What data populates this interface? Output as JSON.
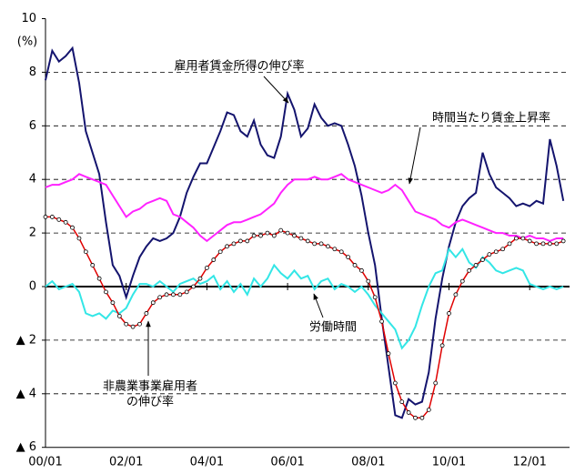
{
  "chart_data": {
    "type": "line",
    "y_unit_label": "(%)",
    "categories": [
      "00/01",
      null,
      null,
      null,
      null,
      null,
      null,
      null,
      null,
      null,
      null,
      null,
      "02/01",
      null,
      null,
      null,
      null,
      null,
      null,
      null,
      null,
      null,
      null,
      null,
      "04/01",
      null,
      null,
      null,
      null,
      null,
      null,
      null,
      null,
      null,
      null,
      null,
      "06/01",
      null,
      null,
      null,
      null,
      null,
      null,
      null,
      null,
      null,
      null,
      null,
      "08/01",
      null,
      null,
      null,
      null,
      null,
      null,
      null,
      null,
      null,
      null,
      null,
      "10/01",
      null,
      null,
      null,
      null,
      null,
      null,
      null,
      null,
      null,
      null,
      null,
      "12/01",
      null,
      null,
      null,
      null,
      null
    ],
    "ylim": [
      -6,
      10
    ],
    "yticks": [
      10,
      8,
      6,
      4,
      2,
      0,
      {
        "value": -2,
        "label": "▲ 2"
      },
      {
        "value": -4,
        "label": "▲ 4"
      },
      {
        "value": -6,
        "label": "▲ 6"
      }
    ],
    "grid": true,
    "series": [
      {
        "name": "雇用者賃金所得の伸び率",
        "color": "#14146e",
        "values": [
          7.7,
          8.8,
          8.4,
          8.6,
          8.9,
          7.6,
          5.8,
          5.0,
          4.2,
          2.4,
          0.8,
          0.4,
          -0.4,
          0.4,
          1.1,
          1.5,
          1.8,
          1.7,
          1.8,
          2.0,
          2.6,
          3.5,
          4.1,
          4.6,
          4.6,
          5.2,
          5.8,
          6.5,
          6.4,
          5.8,
          5.6,
          6.2,
          5.3,
          4.9,
          4.8,
          5.6,
          7.2,
          6.6,
          5.6,
          5.9,
          6.8,
          6.3,
          6.0,
          6.1,
          6.0,
          5.3,
          4.5,
          3.4,
          2.0,
          0.8,
          -1.2,
          -3.0,
          -4.8,
          -4.9,
          -4.2,
          -4.4,
          -4.3,
          -3.2,
          -1.2,
          0.3,
          1.5,
          2.4,
          3.0,
          3.3,
          3.5,
          5.0,
          4.2,
          3.7,
          3.5,
          3.3,
          3.0,
          3.1,
          3.0,
          3.2,
          3.1,
          5.5,
          4.5,
          3.2
        ]
      },
      {
        "name": "時間当たり賃金上昇率",
        "color": "#ff22ff",
        "values": [
          3.7,
          3.8,
          3.8,
          3.9,
          4.0,
          4.2,
          4.1,
          4.0,
          3.9,
          3.8,
          3.4,
          3.0,
          2.6,
          2.8,
          2.9,
          3.1,
          3.2,
          3.3,
          3.2,
          2.7,
          2.6,
          2.4,
          2.2,
          1.9,
          1.7,
          1.9,
          2.1,
          2.3,
          2.4,
          2.4,
          2.5,
          2.6,
          2.7,
          2.9,
          3.1,
          3.5,
          3.8,
          4.0,
          4.0,
          4.0,
          4.1,
          4.0,
          4.0,
          4.1,
          4.2,
          4.0,
          3.9,
          3.8,
          3.7,
          3.6,
          3.5,
          3.6,
          3.8,
          3.6,
          3.2,
          2.8,
          2.7,
          2.6,
          2.5,
          2.3,
          2.2,
          2.4,
          2.5,
          2.4,
          2.3,
          2.2,
          2.1,
          2.0,
          2.0,
          1.9,
          1.9,
          1.8,
          1.9,
          1.8,
          1.8,
          1.7,
          1.8,
          1.8
        ]
      },
      {
        "name": "労働時間",
        "color": "#33e6e6",
        "values": [
          0.0,
          0.2,
          -0.1,
          0.0,
          0.1,
          -0.2,
          -1.0,
          -1.1,
          -1.0,
          -1.2,
          -0.9,
          -1.0,
          -0.8,
          -0.3,
          0.1,
          0.1,
          0.0,
          0.2,
          0.0,
          -0.2,
          0.1,
          0.2,
          0.3,
          0.1,
          0.2,
          0.4,
          -0.1,
          0.2,
          -0.2,
          0.1,
          -0.3,
          0.3,
          0.0,
          0.3,
          0.8,
          0.5,
          0.3,
          0.6,
          0.3,
          0.4,
          -0.1,
          0.2,
          0.3,
          -0.1,
          0.1,
          0.0,
          -0.2,
          0.0,
          -0.3,
          -0.7,
          -1.0,
          -1.3,
          -1.6,
          -2.3,
          -2.0,
          -1.5,
          -0.7,
          0.0,
          0.5,
          0.6,
          1.4,
          1.1,
          1.4,
          0.9,
          0.7,
          1.1,
          0.9,
          0.6,
          0.5,
          0.6,
          0.7,
          0.6,
          0.1,
          0.0,
          -0.1,
          0.0,
          -0.1,
          0.0
        ]
      },
      {
        "name": "非農業事業雇用者の伸び率",
        "color": "#e00000",
        "markers": true,
        "values": [
          2.6,
          2.6,
          2.5,
          2.4,
          2.2,
          1.8,
          1.3,
          0.8,
          0.3,
          -0.2,
          -0.6,
          -1.1,
          -1.4,
          -1.5,
          -1.4,
          -1.0,
          -0.6,
          -0.4,
          -0.3,
          -0.3,
          -0.3,
          -0.2,
          0.0,
          0.3,
          0.7,
          1.0,
          1.3,
          1.5,
          1.6,
          1.7,
          1.7,
          1.9,
          1.9,
          2.0,
          1.9,
          2.1,
          2.0,
          1.9,
          1.8,
          1.7,
          1.6,
          1.6,
          1.5,
          1.4,
          1.3,
          1.1,
          0.8,
          0.6,
          0.2,
          -0.4,
          -1.3,
          -2.5,
          -3.6,
          -4.3,
          -4.7,
          -4.9,
          -4.9,
          -4.6,
          -3.6,
          -2.2,
          -1.0,
          -0.3,
          0.2,
          0.6,
          0.8,
          1.0,
          1.2,
          1.3,
          1.4,
          1.6,
          1.8,
          1.8,
          1.7,
          1.6,
          1.6,
          1.6,
          1.6,
          1.7
        ]
      }
    ],
    "annotations": [
      {
        "lines": [
          "雇用者賃金所得の伸び率"
        ]
      },
      {
        "lines": [
          "時間当たり賃金上昇率"
        ]
      },
      {
        "lines": [
          "労働時間"
        ]
      },
      {
        "lines": [
          "非農業事業雇用者",
          "の伸び率"
        ]
      }
    ]
  }
}
